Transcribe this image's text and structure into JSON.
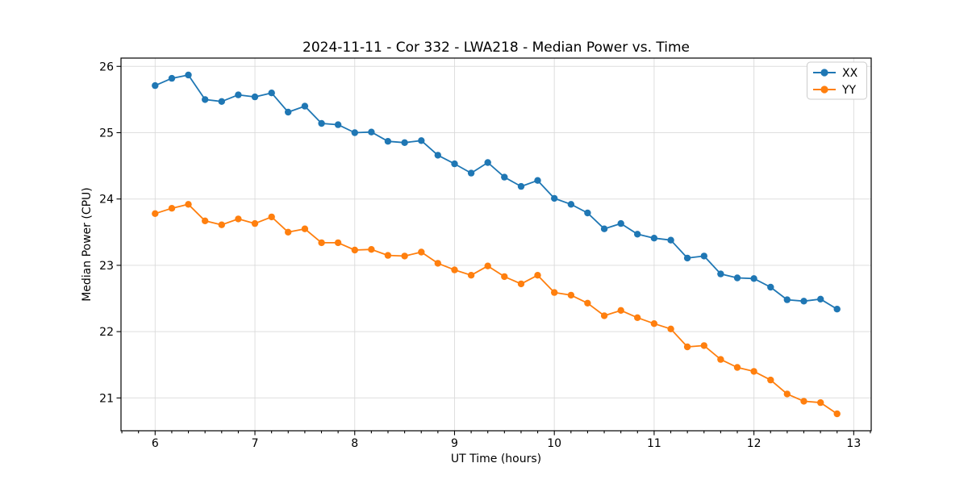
{
  "chart_data": {
    "type": "line",
    "title": "2024-11-11 - Cor 332 - LWA218 - Median Power vs. Time",
    "xlabel": "UT Time (hours)",
    "ylabel": "Median Power (CPU)",
    "xlim": [
      5.658,
      13.175
    ],
    "ylim": [
      20.505,
      26.125
    ],
    "x_ticks": [
      6,
      7,
      8,
      9,
      10,
      11,
      12,
      13
    ],
    "y_ticks": [
      21,
      22,
      23,
      24,
      25,
      26
    ],
    "x_minor_tick_step_hours": 0.1667,
    "grid": true,
    "legend_position": "upper right",
    "x": [
      6.0,
      6.167,
      6.333,
      6.5,
      6.667,
      6.833,
      7.0,
      7.167,
      7.333,
      7.5,
      7.667,
      7.833,
      8.0,
      8.167,
      8.333,
      8.5,
      8.667,
      8.833,
      9.0,
      9.167,
      9.333,
      9.5,
      9.667,
      9.833,
      10.0,
      10.167,
      10.333,
      10.5,
      10.667,
      10.833,
      11.0,
      11.167,
      11.333,
      11.5,
      11.667,
      11.833,
      12.0,
      12.167,
      12.333,
      12.5,
      12.667,
      12.833
    ],
    "series": [
      {
        "name": "XX",
        "color": "#1f77b4",
        "values": [
          25.71,
          25.82,
          25.87,
          25.5,
          25.47,
          25.57,
          25.54,
          25.6,
          25.31,
          25.4,
          25.14,
          25.12,
          25.0,
          25.01,
          24.87,
          24.85,
          24.88,
          24.66,
          24.53,
          24.39,
          24.55,
          24.33,
          24.19,
          24.28,
          24.01,
          23.92,
          23.79,
          23.55,
          23.63,
          23.47,
          23.41,
          23.38,
          23.11,
          23.14,
          22.87,
          22.81,
          22.8,
          22.67,
          22.48,
          22.46,
          22.49,
          22.34
        ]
      },
      {
        "name": "YY",
        "color": "#ff7f0e",
        "values": [
          23.78,
          23.86,
          23.92,
          23.67,
          23.61,
          23.7,
          23.63,
          23.73,
          23.5,
          23.55,
          23.34,
          23.34,
          23.23,
          23.24,
          23.15,
          23.14,
          23.2,
          23.03,
          22.93,
          22.85,
          22.99,
          22.83,
          22.72,
          22.85,
          22.59,
          22.55,
          22.43,
          22.24,
          22.32,
          22.21,
          22.12,
          22.04,
          21.77,
          21.79,
          21.58,
          21.46,
          21.4,
          21.27,
          21.06,
          20.95,
          20.93,
          20.76
        ]
      }
    ]
  }
}
